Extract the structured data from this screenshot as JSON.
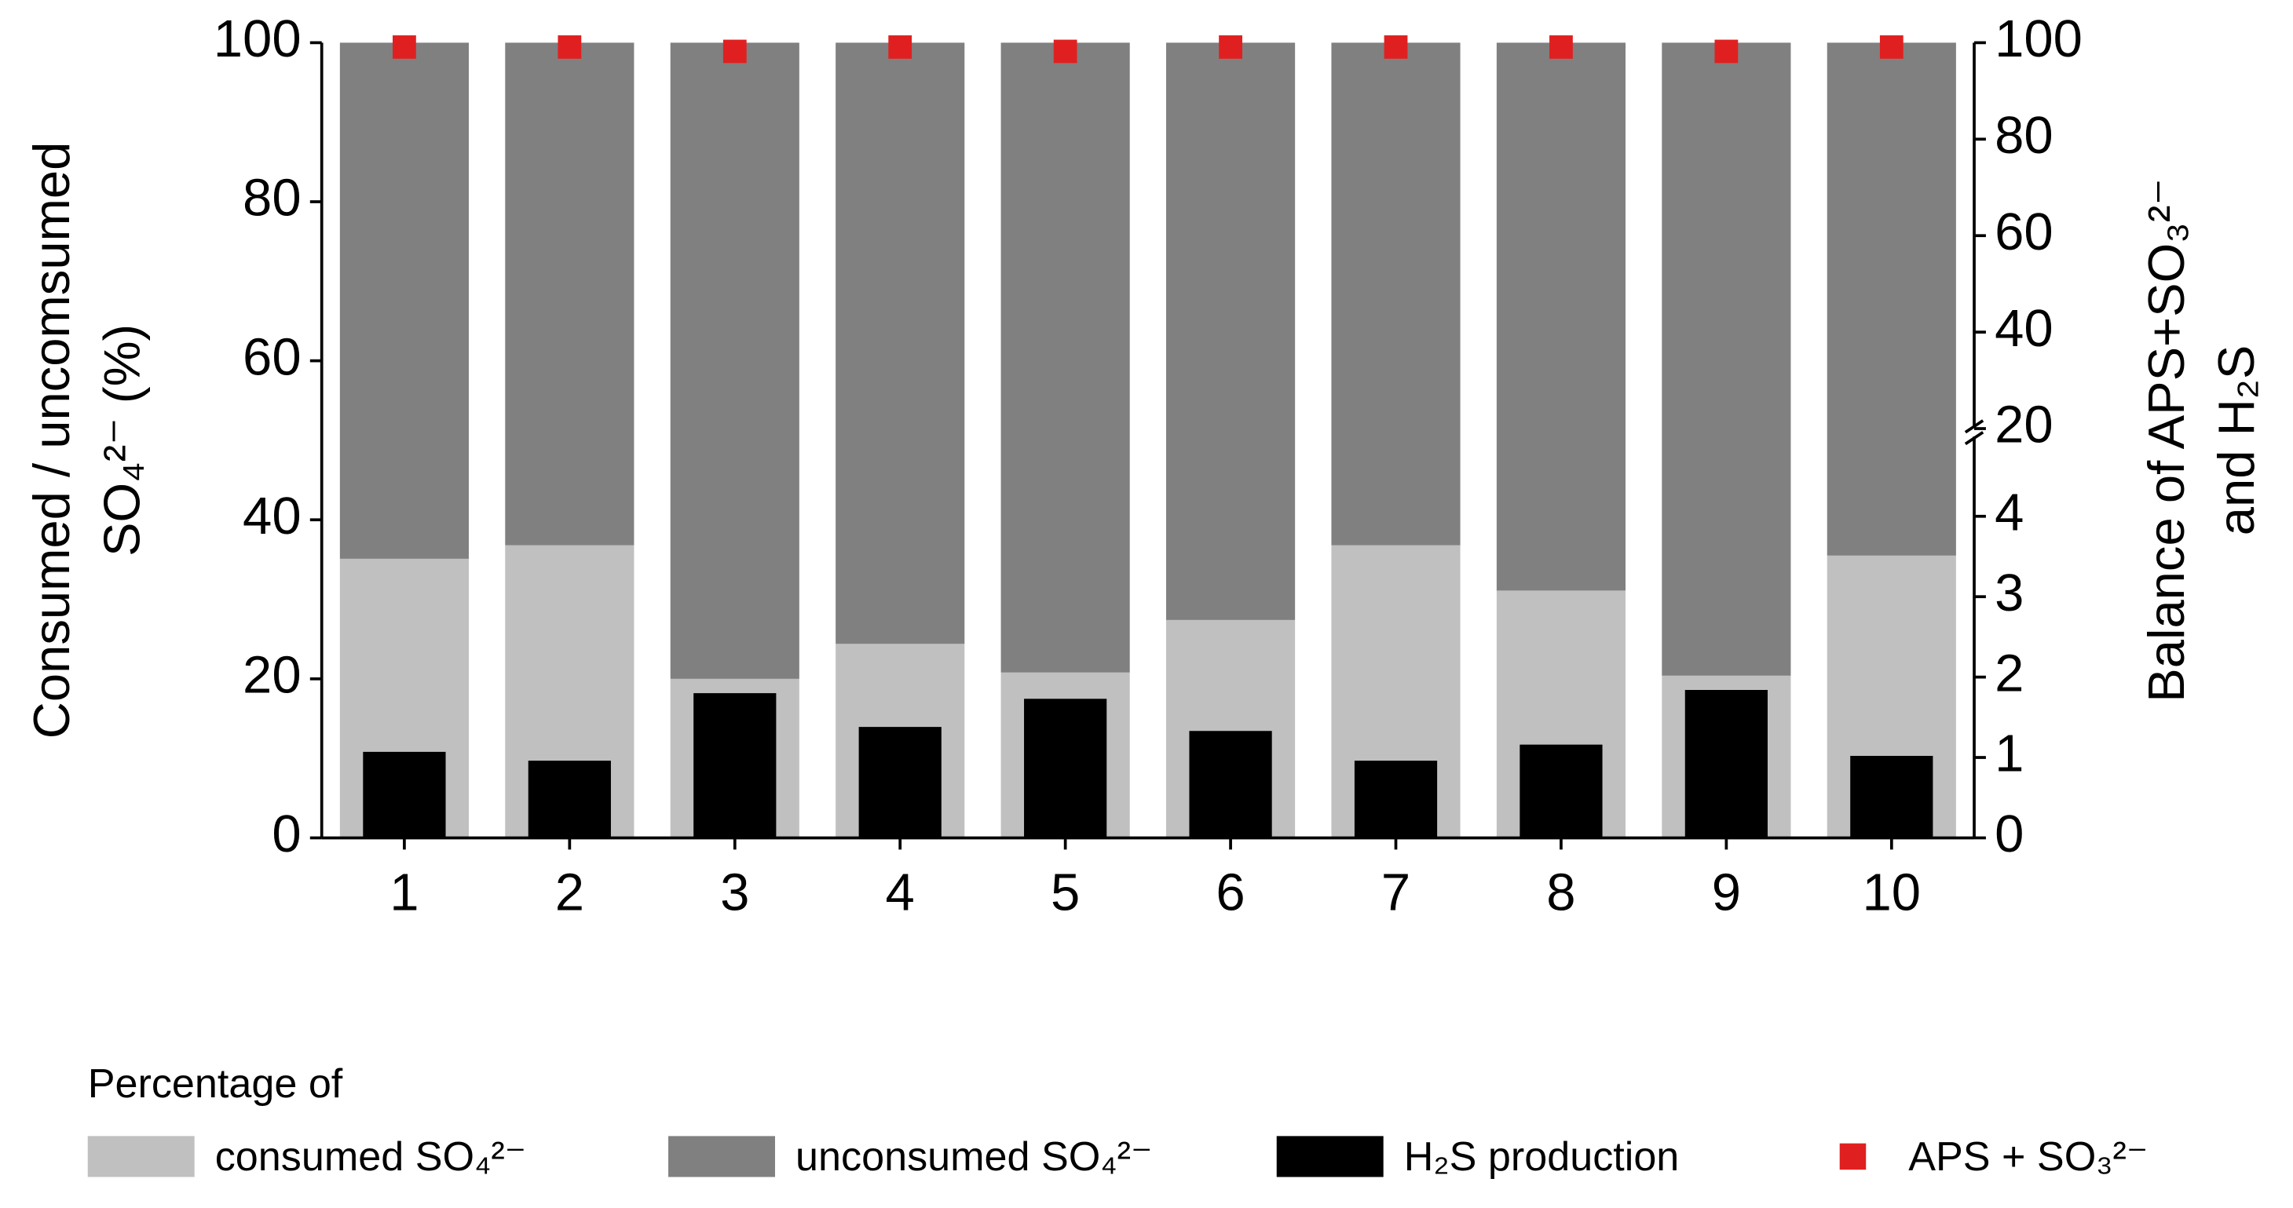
{
  "chart_data": {
    "type": "bar",
    "stacked": true,
    "categories": [
      "1",
      "2",
      "3",
      "4",
      "5",
      "6",
      "7",
      "8",
      "9",
      "10"
    ],
    "ylabel": [
      "Consumed / uncomsumed",
      "SO₄²⁻ (%)"
    ],
    "y2label": [
      "Balance of APS+SO₃²⁻",
      "and H₂S"
    ],
    "legend_title": "Percentage of",
    "ylim": [
      0,
      100
    ],
    "yticks": [
      0,
      20,
      40,
      60,
      80,
      100
    ],
    "y2lim": [
      0,
      100
    ],
    "y2ticks": [
      0,
      1,
      2,
      3,
      4,
      20,
      40,
      60,
      80,
      100
    ],
    "y2break": [
      5,
      20
    ],
    "series": [
      {
        "name": "consumed SO₄²⁻",
        "color": "#c0c0c0",
        "type": "bar",
        "values": [
          35.1,
          36.8,
          20.0,
          24.4,
          20.8,
          27.4,
          36.8,
          31.1,
          20.4,
          35.5
        ]
      },
      {
        "name": "unconsumed SO₄²⁻",
        "color": "#808080",
        "type": "bar",
        "values": [
          64.9,
          63.2,
          80.0,
          75.6,
          79.2,
          72.6,
          63.2,
          68.9,
          79.6,
          64.5
        ]
      },
      {
        "name": "H₂S production",
        "color": "#000000",
        "type": "bar",
        "axis": "y2",
        "values": [
          1.07,
          0.96,
          1.8,
          1.38,
          1.73,
          1.33,
          0.96,
          1.16,
          1.84,
          1.02
        ]
      },
      {
        "name": "APS + SO₃²⁻",
        "color": "#e02020",
        "type": "scatter",
        "axis": "y2",
        "values": [
          99.1,
          99.1,
          98.2,
          99.1,
          98.2,
          99.1,
          99.1,
          99.1,
          98.2,
          99.1
        ]
      }
    ]
  }
}
